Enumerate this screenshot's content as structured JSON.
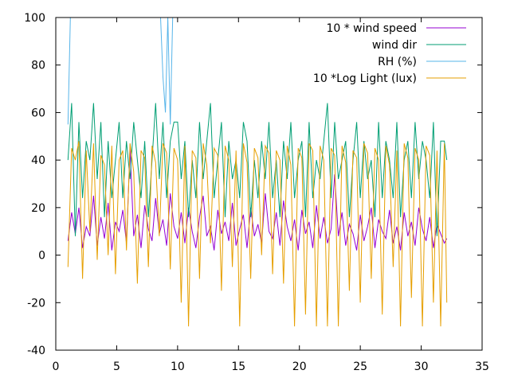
{
  "chart_data": {
    "type": "line",
    "grid": false,
    "legend_position": "top-right",
    "xlim": [
      0,
      35
    ],
    "ylim": [
      -40,
      100
    ],
    "xticks": [
      0,
      5,
      10,
      15,
      20,
      25,
      30,
      35
    ],
    "yticks": [
      -40,
      -20,
      0,
      20,
      40,
      60,
      80,
      100
    ],
    "xtick_labels": [
      "0",
      "5",
      "10",
      "15",
      "20",
      "25",
      "30",
      "35"
    ],
    "ytick_labels": [
      "-40",
      "-20",
      "0",
      "20",
      "40",
      "60",
      "80",
      "100"
    ],
    "series": [
      {
        "name": "10 * wind speed",
        "color": "#9400d3",
        "x": [
          1.0,
          1.3,
          1.6,
          1.9,
          2.2,
          2.5,
          2.8,
          3.1,
          3.4,
          3.7,
          4.0,
          4.3,
          4.6,
          4.9,
          5.2,
          5.5,
          5.8,
          6.1,
          6.4,
          6.7,
          7.0,
          7.3,
          7.6,
          7.9,
          8.2,
          8.5,
          8.8,
          9.1,
          9.4,
          9.7,
          10.0,
          10.3,
          10.6,
          10.9,
          11.2,
          11.5,
          11.8,
          12.1,
          12.4,
          12.7,
          13.0,
          13.3,
          13.6,
          13.9,
          14.2,
          14.5,
          14.8,
          15.1,
          15.4,
          15.7,
          16.0,
          16.3,
          16.6,
          16.9,
          17.2,
          17.5,
          17.8,
          18.1,
          18.4,
          18.7,
          19.0,
          19.3,
          19.6,
          19.9,
          20.2,
          20.5,
          20.8,
          21.1,
          21.4,
          21.7,
          22.0,
          22.3,
          22.6,
          22.9,
          23.2,
          23.5,
          23.8,
          24.1,
          24.4,
          24.7,
          25.0,
          25.3,
          25.6,
          25.9,
          26.2,
          26.5,
          26.8,
          27.1,
          27.4,
          27.7,
          28.0,
          28.3,
          28.6,
          28.9,
          29.2,
          29.5,
          29.8,
          30.1,
          30.4,
          30.7,
          31.0,
          31.3,
          31.6,
          31.9,
          32.1
        ],
        "y": [
          6,
          18,
          9,
          20,
          3,
          12,
          8,
          25,
          4,
          16,
          7,
          22,
          2,
          14,
          10,
          19,
          5,
          45,
          8,
          17,
          3,
          21,
          11,
          6,
          24,
          9,
          15,
          4,
          26,
          12,
          7,
          18,
          5,
          20,
          10,
          3,
          16,
          25,
          8,
          12,
          2,
          19,
          9,
          14,
          6,
          22,
          4,
          11,
          17,
          3,
          20,
          8,
          13,
          5,
          26,
          10,
          7,
          18,
          4,
          23,
          12,
          6,
          15,
          2,
          19,
          9,
          14,
          3,
          21,
          7,
          16,
          5,
          11,
          34,
          8,
          18,
          4,
          13,
          9,
          2,
          17,
          6,
          12,
          20,
          3,
          15,
          10,
          7,
          19,
          5,
          12,
          2,
          18,
          8,
          14,
          4,
          20,
          11,
          6,
          16,
          3,
          13,
          9,
          5,
          7
        ]
      },
      {
        "name": "wind dir",
        "color": "#009e73",
        "x": [
          1.0,
          1.3,
          1.6,
          1.9,
          2.2,
          2.5,
          2.8,
          3.1,
          3.4,
          3.7,
          4.0,
          4.3,
          4.6,
          4.9,
          5.2,
          5.5,
          5.8,
          6.1,
          6.4,
          6.7,
          7.0,
          7.3,
          7.6,
          7.9,
          8.2,
          8.5,
          8.8,
          9.1,
          9.4,
          9.7,
          10.0,
          10.3,
          10.6,
          10.9,
          11.2,
          11.5,
          11.8,
          12.1,
          12.4,
          12.7,
          13.0,
          13.3,
          13.6,
          13.9,
          14.2,
          14.5,
          14.8,
          15.1,
          15.4,
          15.7,
          16.0,
          16.3,
          16.6,
          16.9,
          17.2,
          17.5,
          17.8,
          18.1,
          18.4,
          18.7,
          19.0,
          19.3,
          19.6,
          19.9,
          20.2,
          20.5,
          20.8,
          21.1,
          21.4,
          21.7,
          22.0,
          22.3,
          22.6,
          22.9,
          23.2,
          23.5,
          23.8,
          24.1,
          24.4,
          24.7,
          25.0,
          25.3,
          25.6,
          25.9,
          26.2,
          26.5,
          26.8,
          27.1,
          27.4,
          27.7,
          28.0,
          28.3,
          28.6,
          28.9,
          29.2,
          29.5,
          29.8,
          30.1,
          30.4,
          30.7,
          31.0,
          31.3,
          31.6,
          31.9,
          32.1
        ],
        "y": [
          40,
          64,
          8,
          56,
          24,
          48,
          40,
          64,
          32,
          56,
          16,
          48,
          24,
          40,
          56,
          24,
          48,
          32,
          56,
          40,
          24,
          48,
          16,
          40,
          64,
          32,
          56,
          24,
          48,
          56,
          56,
          32,
          48,
          16,
          40,
          24,
          56,
          32,
          48,
          64,
          24,
          40,
          56,
          16,
          48,
          32,
          40,
          24,
          56,
          48,
          16,
          40,
          24,
          48,
          32,
          56,
          24,
          40,
          16,
          48,
          32,
          56,
          24,
          40,
          48,
          16,
          56,
          24,
          40,
          32,
          48,
          64,
          24,
          56,
          32,
          40,
          48,
          16,
          40,
          56,
          24,
          48,
          32,
          40,
          16,
          56,
          24,
          48,
          40,
          24,
          56,
          16,
          40,
          48,
          24,
          56,
          32,
          48,
          40,
          24,
          56,
          8,
          48,
          48,
          40
        ]
      },
      {
        "name": "RH (%)",
        "color": "#56b4e9",
        "x": [
          1.0,
          1.2,
          1.4,
          1.6,
          1.8,
          2.0,
          2.2,
          2.4,
          2.6,
          2.8,
          3.0,
          3.2,
          3.4,
          3.6,
          3.8,
          4.0,
          4.2,
          4.4,
          4.6,
          4.8,
          5.0,
          5.2,
          5.4,
          5.6,
          5.8,
          6.0,
          6.2,
          6.4,
          6.6,
          6.8,
          7.0,
          7.2,
          7.4,
          7.6,
          7.8,
          8.0,
          8.2,
          8.4,
          8.6,
          8.8,
          9.0,
          9.2,
          9.4,
          9.6,
          9.8,
          10.0,
          10.2,
          10.4,
          10.6,
          10.8,
          11.0,
          11.5,
          12.0,
          12.5,
          13.0,
          13.5,
          14.0,
          14.5,
          15.0,
          15.5,
          16.0,
          16.5,
          17.0,
          17.5,
          18.0,
          18.5,
          19.0,
          19.5,
          20.0,
          20.5,
          21.0,
          21.5,
          22.0,
          22.5,
          23.0,
          23.5,
          24.0,
          24.5,
          25.0,
          25.5,
          26.0,
          26.5,
          27.0,
          27.5,
          28.0,
          28.5,
          29.0,
          29.5,
          30.0,
          30.5,
          31.0,
          31.5,
          32.0
        ],
        "y": [
          55,
          100,
          100,
          100,
          100,
          100,
          100,
          100,
          100,
          100,
          100,
          100,
          100,
          100,
          100,
          100,
          100,
          100,
          100,
          100,
          100,
          100,
          100,
          100,
          100,
          100,
          100,
          100,
          100,
          100,
          100,
          100,
          100,
          100,
          100,
          100,
          100,
          100,
          100,
          75,
          60,
          100,
          55,
          100,
          100,
          100,
          100,
          100,
          100,
          100,
          100,
          100,
          100,
          100,
          100,
          100,
          100,
          100,
          100,
          100,
          100,
          100,
          100,
          100,
          100,
          100,
          100,
          100,
          100,
          100,
          100,
          100,
          100,
          100,
          100,
          100,
          100,
          100,
          100,
          100,
          100,
          100,
          100,
          100,
          100,
          100,
          100,
          100,
          100,
          100,
          100,
          100,
          100
        ]
      },
      {
        "name": "10 *Log Light (lux)",
        "color": "#e69f00",
        "x": [
          1.0,
          1.3,
          1.6,
          1.9,
          2.2,
          2.5,
          2.8,
          3.1,
          3.4,
          3.7,
          4.0,
          4.3,
          4.6,
          4.9,
          5.2,
          5.5,
          5.8,
          6.1,
          6.4,
          6.7,
          7.0,
          7.3,
          7.6,
          7.9,
          8.2,
          8.5,
          8.8,
          9.1,
          9.4,
          9.7,
          10.0,
          10.3,
          10.6,
          10.9,
          11.2,
          11.5,
          11.8,
          12.1,
          12.4,
          12.7,
          13.0,
          13.3,
          13.6,
          13.9,
          14.2,
          14.5,
          14.8,
          15.1,
          15.4,
          15.7,
          16.0,
          16.3,
          16.6,
          16.9,
          17.2,
          17.5,
          17.8,
          18.1,
          18.4,
          18.7,
          19.0,
          19.3,
          19.6,
          19.9,
          20.2,
          20.5,
          20.8,
          21.1,
          21.4,
          21.7,
          22.0,
          22.3,
          22.6,
          22.9,
          23.2,
          23.5,
          23.8,
          24.1,
          24.4,
          24.7,
          25.0,
          25.3,
          25.6,
          25.9,
          26.2,
          26.5,
          26.8,
          27.1,
          27.4,
          27.7,
          28.0,
          28.3,
          28.6,
          28.9,
          29.2,
          29.5,
          29.8,
          30.1,
          30.4,
          30.7,
          31.0,
          31.3,
          31.6,
          31.9,
          32.1
        ],
        "y": [
          -5,
          45,
          40,
          48,
          -10,
          44,
          10,
          47,
          -2,
          42,
          38,
          0,
          46,
          -8,
          40,
          44,
          2,
          47,
          35,
          -12,
          44,
          41,
          -5,
          46,
          39,
          8,
          47,
          43,
          -6,
          45,
          40,
          -20,
          46,
          -30,
          44,
          41,
          -10,
          47,
          38,
          5,
          45,
          42,
          -15,
          46,
          40,
          -5,
          44,
          -30,
          47,
          39,
          -10,
          45,
          41,
          0,
          46,
          43,
          -8,
          44,
          40,
          -12,
          46,
          38,
          -30,
          45,
          41,
          -25,
          47,
          44,
          -30,
          46,
          40,
          -30,
          45,
          42,
          -30,
          46,
          39,
          -15,
          44,
          41,
          -20,
          47,
          43,
          -10,
          45,
          40,
          -25,
          46,
          38,
          -5,
          44,
          -30,
          47,
          41,
          -18,
          45,
          40,
          -30,
          46,
          42,
          -20,
          44,
          -30,
          47,
          -20
        ]
      }
    ]
  }
}
